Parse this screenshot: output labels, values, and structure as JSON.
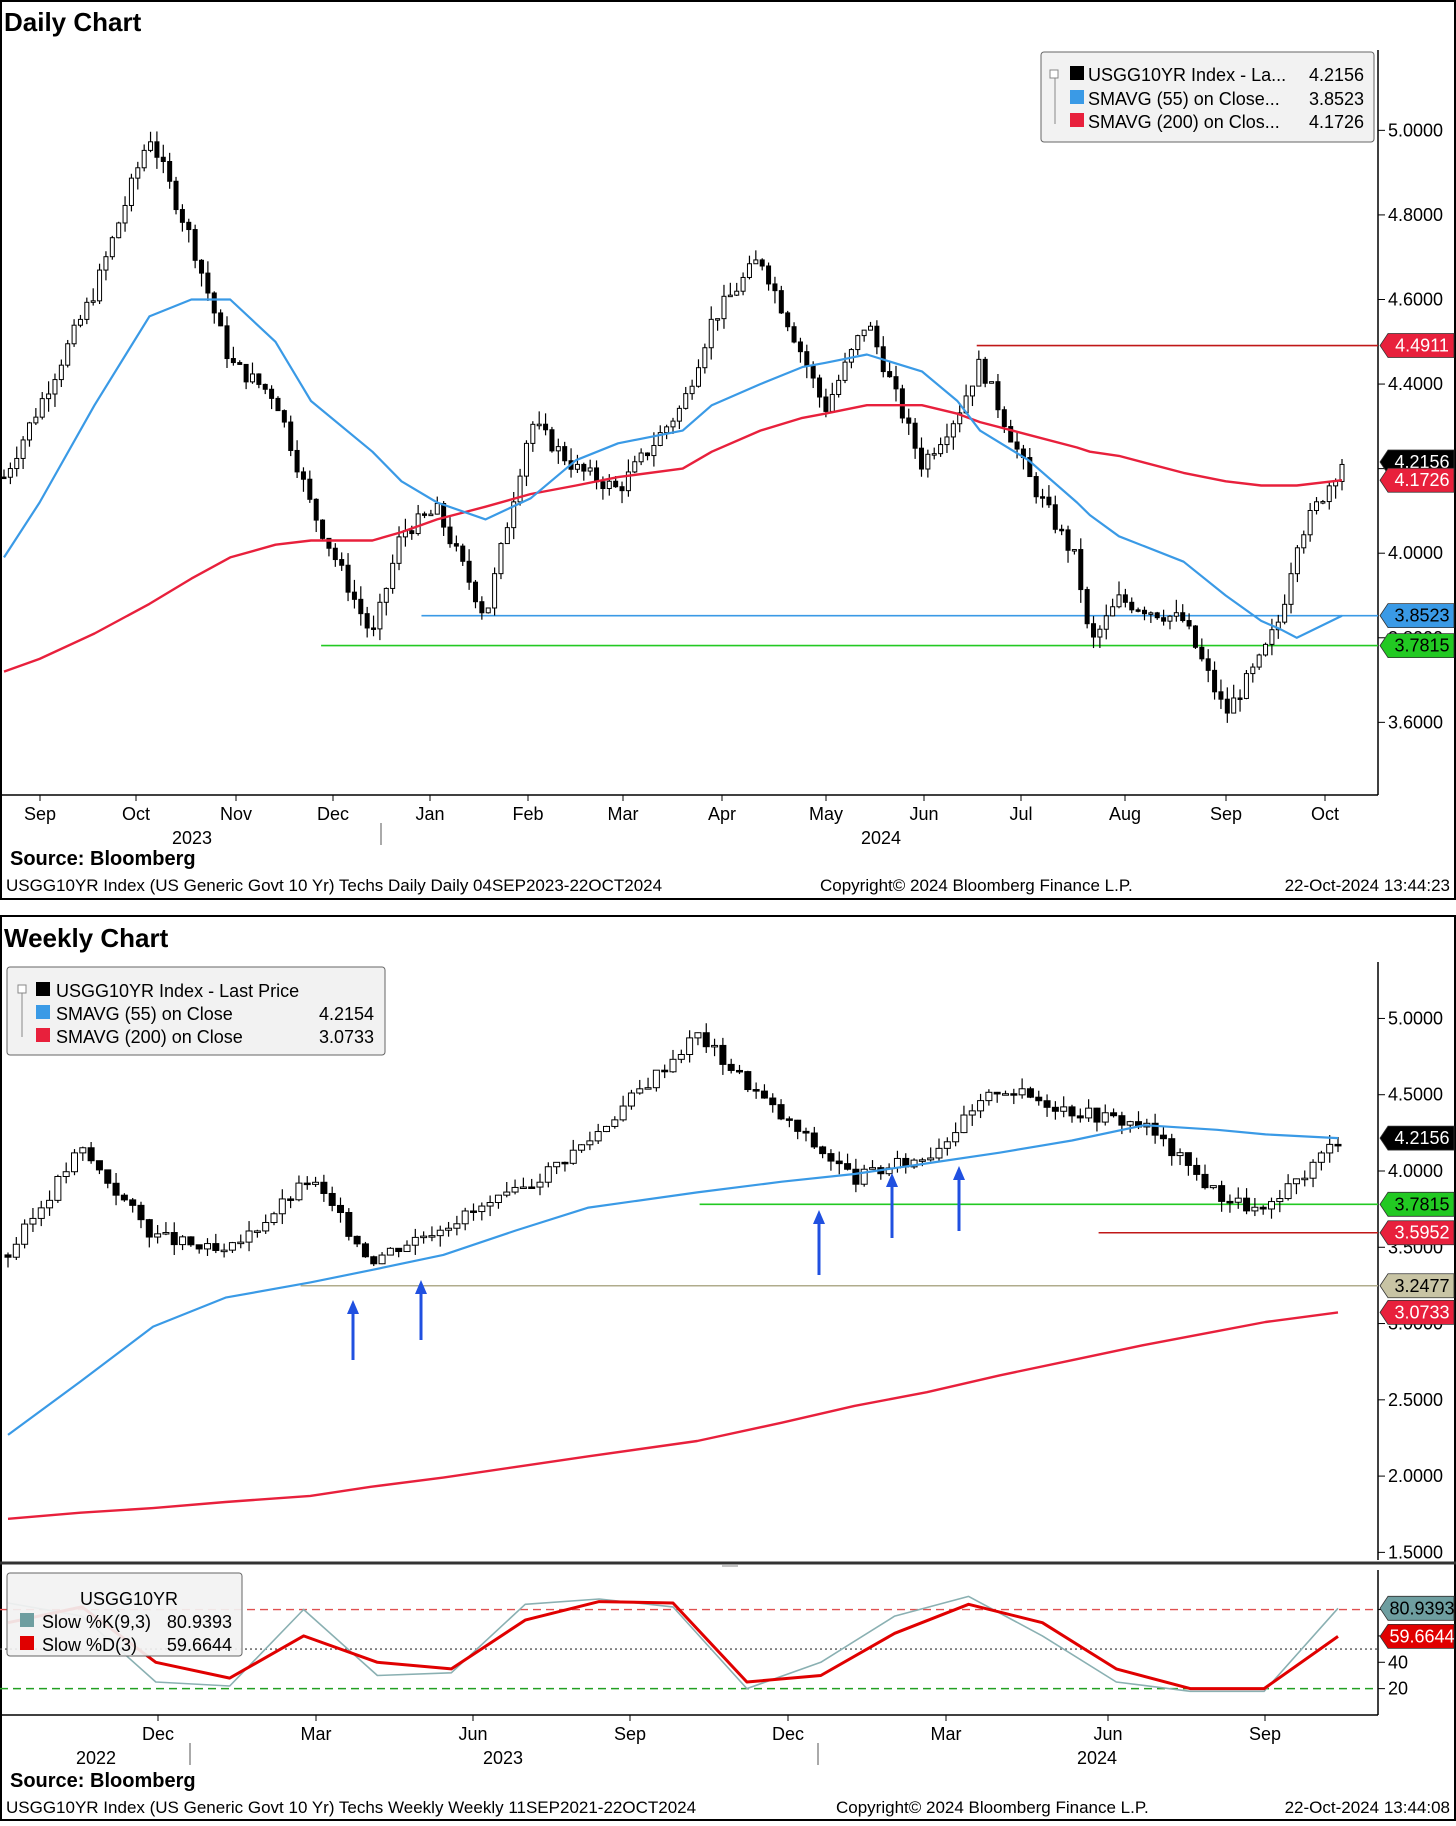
{
  "page": {
    "source": "Source:  Bloomberg"
  },
  "daily": {
    "title": "Daily Chart",
    "legend": [
      {
        "label": "USGG10YR Index - La...",
        "value": "4.2156",
        "color": "#000000"
      },
      {
        "label": "SMAVG (55)  on Close...",
        "value": "3.8523",
        "color": "#3a9ae6"
      },
      {
        "label": "SMAVG (200)  on Clos...",
        "value": "4.1726",
        "color": "#e8203c"
      }
    ],
    "footer_left": "USGG10YR Index (US Generic Govt 10 Yr) Techs Daily  Daily 04SEP2023-22OCT2024",
    "footer_mid": "Copyright© 2024 Bloomberg Finance L.P.",
    "footer_right": "22-Oct-2024 13:44:23",
    "badges": [
      {
        "text": "4.4911",
        "bg": "#e8203c",
        "fg": "#ffffff"
      },
      {
        "text": "4.2156",
        "bg": "#000000",
        "fg": "#ffffff"
      },
      {
        "text": "4.1726",
        "bg": "#e8203c",
        "fg": "#ffffff"
      },
      {
        "text": "3.8523",
        "bg": "#3a9ae6",
        "fg": "#000000"
      },
      {
        "text": "3.7815",
        "bg": "#22c922",
        "fg": "#000000"
      }
    ]
  },
  "weekly": {
    "title": "Weekly Chart",
    "legend": [
      {
        "label": "USGG10YR Index - Last Price",
        "value": "",
        "color": "#000000"
      },
      {
        "label": "SMAVG (55)  on Close",
        "value": "4.2154",
        "color": "#3a9ae6"
      },
      {
        "label": "SMAVG (200)  on Close",
        "value": "3.0733",
        "color": "#e8203c"
      }
    ],
    "badges": [
      {
        "text": "4.2156",
        "bg": "#000000",
        "fg": "#ffffff"
      },
      {
        "text": "3.7815",
        "bg": "#22c922",
        "fg": "#000000"
      },
      {
        "text": "3.5952",
        "bg": "#e8203c",
        "fg": "#ffffff"
      },
      {
        "text": "3.2477",
        "bg": "#c8c4a4",
        "fg": "#000000"
      },
      {
        "text": "3.0733",
        "bg": "#e8203c",
        "fg": "#ffffff"
      }
    ],
    "osc_legend": [
      {
        "label": "USGG10YR",
        "value": "",
        "color": ""
      },
      {
        "label": "Slow %K(9,3)",
        "value": "80.9393",
        "color": "#6e9ea0"
      },
      {
        "label": "Slow %D(3)",
        "value": "59.6644",
        "color": "#e00000"
      }
    ],
    "osc_badges": [
      {
        "text": "80.9393",
        "bg": "#6e9ea0",
        "fg": "#000000"
      },
      {
        "text": "59.6644",
        "bg": "#e00000",
        "fg": "#ffffff"
      }
    ],
    "footer_left": "USGG10YR Index (US Generic Govt 10 Yr) Techs Weekly  Weekly 11SEP2021-22OCT2024",
    "footer_mid": "Copyright© 2024 Bloomberg Finance L.P.",
    "footer_right": "22-Oct-2024 13:44:08"
  },
  "chart_data": [
    {
      "type": "line",
      "title": "Daily Chart",
      "ylim": [
        3.44,
        5.19
      ],
      "yticks": [
        "5.0000",
        "4.8000",
        "4.6000",
        "4.4000",
        "4.2000",
        "4.0000",
        "3.8000",
        "3.6000"
      ],
      "xlabels": [
        "Sep",
        "Oct",
        "Nov",
        "Dec",
        "Jan",
        "Feb",
        "Mar",
        "Apr",
        "May",
        "Jun",
        "Jul",
        "Aug",
        "Sep",
        "Oct"
      ],
      "years": [
        "2023",
        "2024"
      ],
      "x": [
        "2023-09-04",
        "2023-09-15",
        "2023-10-02",
        "2023-10-19",
        "2023-11-01",
        "2023-11-13",
        "2023-11-27",
        "2023-12-08",
        "2023-12-27",
        "2024-01-05",
        "2024-01-16",
        "2024-01-31",
        "2024-02-14",
        "2024-02-28",
        "2024-03-12",
        "2024-04-01",
        "2024-04-10",
        "2024-04-25",
        "2024-05-08",
        "2024-05-15",
        "2024-05-28",
        "2024-06-14",
        "2024-06-25",
        "2024-07-02",
        "2024-07-17",
        "2024-08-01",
        "2024-08-05",
        "2024-08-14",
        "2024-09-03",
        "2024-09-16",
        "2024-09-27",
        "2024-10-03",
        "2024-10-08",
        "2024-10-22"
      ],
      "series": [
        {
          "name": "USGG10YR Index - Last Price",
          "type": "candles",
          "values": [
            4.18,
            4.35,
            4.62,
            4.99,
            4.74,
            4.45,
            4.37,
            4.11,
            3.8,
            4.05,
            4.1,
            3.85,
            4.31,
            4.2,
            4.15,
            4.35,
            4.55,
            4.7,
            4.47,
            4.34,
            4.55,
            4.21,
            4.33,
            4.45,
            4.18,
            3.98,
            3.78,
            3.89,
            3.84,
            3.62,
            3.75,
            3.85,
            4.03,
            4.2156
          ]
        },
        {
          "name": "SMAVG (55) on Close",
          "values": [
            3.99,
            4.12,
            4.35,
            4.56,
            4.6,
            4.6,
            4.5,
            4.36,
            4.24,
            4.17,
            4.12,
            4.08,
            4.13,
            4.22,
            4.26,
            4.29,
            4.35,
            4.4,
            4.44,
            4.45,
            4.47,
            4.43,
            4.36,
            4.29,
            4.22,
            4.12,
            4.09,
            4.04,
            3.98,
            3.9,
            3.84,
            3.82,
            3.8,
            3.8523
          ]
        },
        {
          "name": "SMAVG (200) on Close",
          "values": [
            3.72,
            3.75,
            3.81,
            3.88,
            3.94,
            3.99,
            4.02,
            4.03,
            4.03,
            4.05,
            4.08,
            4.11,
            4.14,
            4.16,
            4.18,
            4.2,
            4.24,
            4.29,
            4.32,
            4.33,
            4.35,
            4.35,
            4.33,
            4.31,
            4.28,
            4.25,
            4.24,
            4.23,
            4.19,
            4.17,
            4.16,
            4.16,
            4.16,
            4.1726
          ]
        }
      ],
      "levels": [
        4.4911,
        3.8523,
        3.7815
      ]
    },
    {
      "type": "line",
      "title": "Weekly Chart",
      "ylim": [
        1.45,
        5.37
      ],
      "yticks": [
        "5.0000",
        "4.5000",
        "4.0000",
        "3.5000",
        "3.0000",
        "2.5000",
        "2.0000",
        "1.5000"
      ],
      "xlabels": [
        "Dec",
        "Mar",
        "Jun",
        "Sep",
        "Dec",
        "Mar",
        "Jun",
        "Sep"
      ],
      "years": [
        "2022",
        "2023",
        "2024"
      ],
      "x": [
        "2022-09-12",
        "2022-10-24",
        "2022-12-05",
        "2023-01-16",
        "2023-03-06",
        "2023-04-10",
        "2023-05-22",
        "2023-07-03",
        "2023-08-14",
        "2023-10-16",
        "2023-12-04",
        "2024-01-15",
        "2024-02-26",
        "2024-04-08",
        "2024-05-20",
        "2024-07-01",
        "2024-08-12",
        "2024-09-09",
        "2024-10-21"
      ],
      "series": [
        {
          "name": "USGG10YR Index - Last Price",
          "type": "candles",
          "values": [
            3.45,
            4.15,
            3.58,
            3.45,
            3.95,
            3.42,
            3.65,
            3.85,
            4.2,
            4.9,
            4.35,
            3.95,
            4.1,
            4.55,
            4.4,
            4.3,
            3.85,
            3.72,
            4.2156
          ]
        },
        {
          "name": "SMAVG (55) on Close",
          "values": [
            2.27,
            2.62,
            2.98,
            3.17,
            3.27,
            3.35,
            3.45,
            3.61,
            3.76,
            3.86,
            3.93,
            3.98,
            4.05,
            4.12,
            4.2,
            4.3,
            4.27,
            4.24,
            4.2154
          ]
        },
        {
          "name": "SMAVG (200) on Close",
          "values": [
            1.72,
            1.76,
            1.79,
            1.83,
            1.87,
            1.93,
            1.99,
            2.06,
            2.13,
            2.23,
            2.35,
            2.46,
            2.55,
            2.66,
            2.76,
            2.86,
            2.95,
            3.01,
            3.0733
          ]
        }
      ],
      "levels": [
        3.7815,
        3.5952,
        3.2477
      ],
      "annotations": [
        "up arrows at support touches: Mar 2023, May 2023, Dec 2023, Feb 2024, Mar 2024"
      ]
    },
    {
      "type": "line",
      "title": "USGG10YR",
      "ylim": [
        0,
        110
      ],
      "yticks": [
        "80",
        "60",
        "40",
        "20"
      ],
      "reference_lines": [
        80,
        50,
        20
      ],
      "x": [
        "2022-09",
        "2022-11",
        "2022-12",
        "2023-02",
        "2023-03",
        "2023-05",
        "2023-06",
        "2023-08",
        "2023-09",
        "2023-10",
        "2023-12",
        "2024-01",
        "2024-02",
        "2024-04",
        "2024-05",
        "2024-07",
        "2024-08",
        "2024-09",
        "2024-10"
      ],
      "series": [
        {
          "name": "Slow %K(9,3)",
          "values": [
            85,
            75,
            25,
            22,
            80,
            30,
            32,
            84,
            88,
            82,
            20,
            40,
            75,
            90,
            60,
            25,
            18,
            18,
            80.9393
          ]
        },
        {
          "name": "Slow %D(3)",
          "values": [
            70,
            82,
            40,
            28,
            60,
            40,
            35,
            72,
            86,
            85,
            25,
            30,
            62,
            84,
            70,
            35,
            20,
            20,
            59.6644
          ]
        }
      ]
    }
  ]
}
